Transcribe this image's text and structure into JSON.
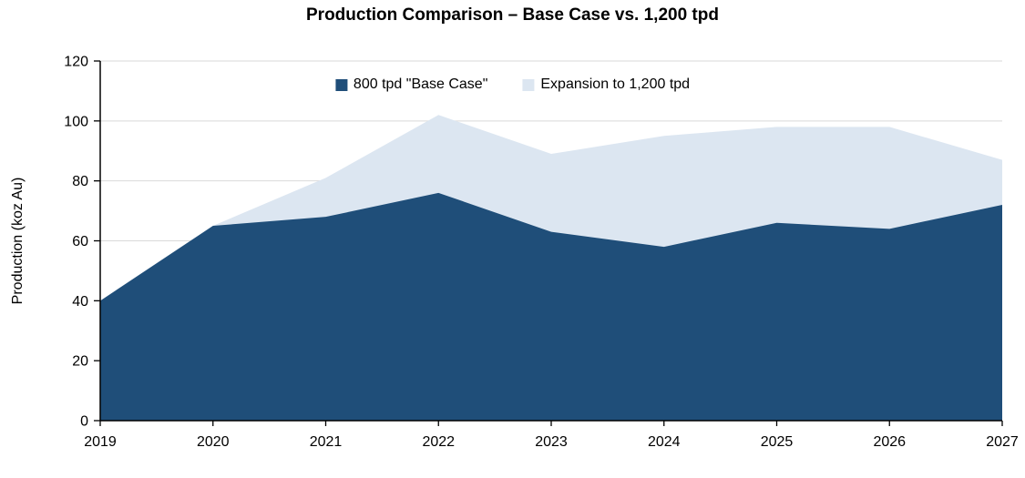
{
  "chart": {
    "title": "Production Comparison – Base Case vs. 1,200 tpd",
    "ylabel": "Production (koz Au)"
  },
  "chart_data": {
    "type": "area",
    "title": "Production Comparison – Base Case vs. 1,200 tpd",
    "xlabel": "",
    "ylabel": "Production (koz Au)",
    "x": [
      2019,
      2020,
      2021,
      2022,
      2023,
      2024,
      2025,
      2026,
      2027
    ],
    "series": [
      {
        "name": "800 tpd \"Base Case\"",
        "values": [
          40,
          65,
          68,
          76,
          63,
          58,
          66,
          64,
          72
        ],
        "color": "#1F4E79",
        "note": "dark area drawn in front, from 0 to value"
      },
      {
        "name": "Expansion to 1,200 tpd",
        "values": [
          40,
          65,
          81,
          102,
          89,
          95,
          98,
          98,
          87
        ],
        "color": "#DCE6F1",
        "note": "light area drawn behind, values are total production with expansion"
      }
    ],
    "ylim": [
      0,
      120
    ],
    "ytick_interval": 20,
    "yticks": [
      0,
      20,
      40,
      60,
      80,
      100,
      120
    ],
    "grid": true,
    "gridline_color": "#D9D9D9",
    "axis_color": "#000000",
    "legend_position": "top-center"
  }
}
